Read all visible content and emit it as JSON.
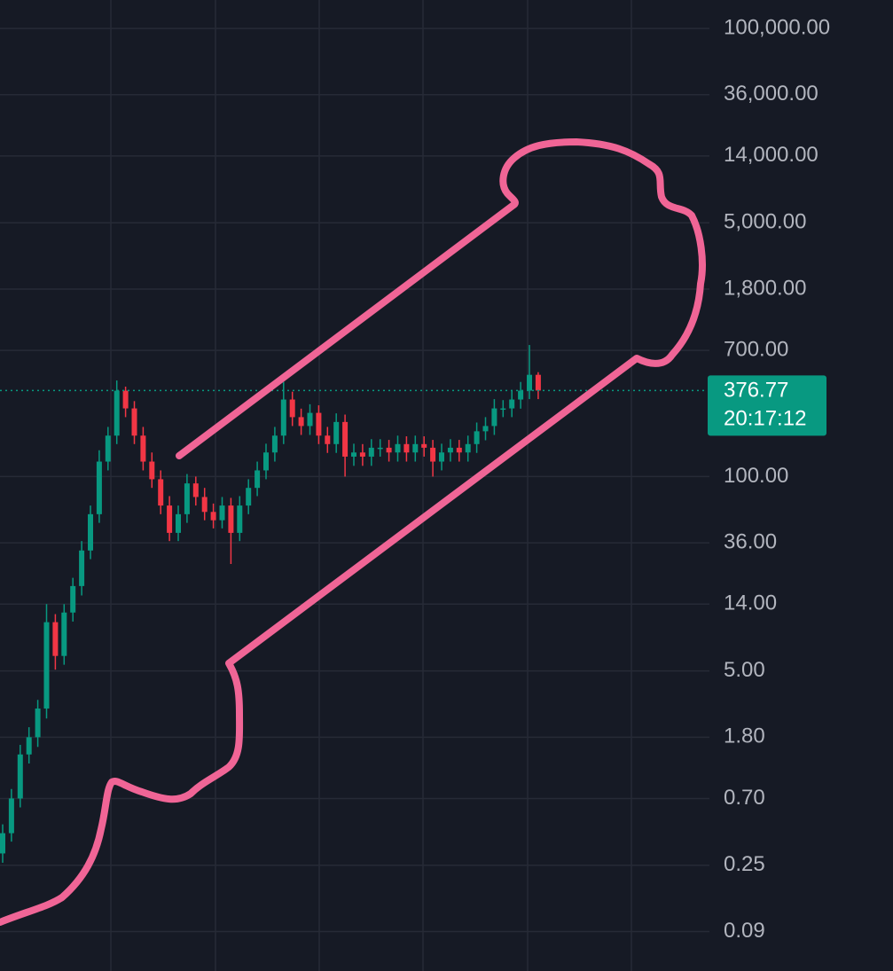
{
  "chart_data": {
    "type": "candlestick",
    "log_scale": true,
    "grid": true,
    "up_color": "#089981",
    "down_color": "#f23645",
    "ylim": [
      0.049,
      155000
    ],
    "yticks": [
      {
        "value": 100000,
        "label": "100,000.00"
      },
      {
        "value": 36000,
        "label": "36,000.00"
      },
      {
        "value": 14000,
        "label": "14,000.00"
      },
      {
        "value": 5000,
        "label": "5,000.00"
      },
      {
        "value": 1800,
        "label": "1,800.00"
      },
      {
        "value": 700,
        "label": "700.00"
      },
      {
        "value": 100,
        "label": "100.00"
      },
      {
        "value": 36,
        "label": "36.00"
      },
      {
        "value": 14,
        "label": "14.00"
      },
      {
        "value": 5,
        "label": "5.00"
      },
      {
        "value": 1.8,
        "label": "1.80"
      },
      {
        "value": 0.7,
        "label": "0.70"
      },
      {
        "value": 0.25,
        "label": "0.25"
      },
      {
        "value": 0.09,
        "label": "0.09"
      }
    ],
    "last_price": 376.77,
    "countdown": "20:17:12",
    "open": [
      0.3,
      0.41,
      0.7,
      1.38,
      1.8,
      2.8,
      10.6,
      6.3,
      12.3,
      18.5,
      32,
      56,
      126,
      188,
      376,
      286,
      188,
      126,
      96,
      64,
      42,
      56,
      90,
      73,
      58,
      51,
      64,
      42,
      64,
      84,
      110,
      145,
      188,
      328,
      250,
      218,
      267,
      188,
      165,
      232,
      136,
      145,
      136,
      156,
      156,
      145,
      165,
      145,
      165,
      156,
      126,
      145,
      156,
      145,
      165,
      201,
      218,
      286,
      286,
      328,
      376,
      480
    ],
    "high": [
      0.47,
      0.81,
      1.6,
      2.1,
      3.2,
      14,
      12,
      14,
      21,
      37,
      64,
      150,
      215,
      440,
      400,
      320,
      215,
      145,
      110,
      74,
      64,
      104,
      100,
      84,
      66,
      73,
      72,
      74,
      96,
      126,
      166,
      215,
      430,
      370,
      285,
      305,
      300,
      215,
      265,
      260,
      166,
      165,
      178,
      178,
      176,
      188,
      186,
      188,
      186,
      176,
      166,
      178,
      176,
      188,
      230,
      250,
      330,
      325,
      375,
      430,
      760,
      500
    ],
    "low": [
      0.26,
      0.36,
      0.61,
      1.2,
      1.55,
      2.4,
      5.1,
      5.5,
      10.7,
      16,
      28,
      49,
      110,
      165,
      250,
      165,
      110,
      84,
      56,
      37,
      37,
      49,
      64,
      51,
      45,
      45,
      26,
      37,
      56,
      74,
      96,
      126,
      165,
      218,
      190,
      190,
      165,
      144,
      144,
      100,
      118,
      118,
      118,
      136,
      126,
      126,
      126,
      126,
      136,
      100,
      110,
      126,
      126,
      126,
      144,
      175,
      190,
      250,
      250,
      285,
      330,
      330
    ],
    "close": [
      0.41,
      0.7,
      1.38,
      1.8,
      2.8,
      10.6,
      6.3,
      12.3,
      18.5,
      32,
      56,
      126,
      188,
      376,
      286,
      188,
      126,
      96,
      64,
      42,
      56,
      90,
      73,
      58,
      51,
      64,
      42,
      64,
      84,
      110,
      145,
      188,
      328,
      250,
      218,
      267,
      188,
      165,
      232,
      136,
      145,
      136,
      156,
      156,
      145,
      165,
      145,
      165,
      156,
      126,
      145,
      156,
      145,
      165,
      201,
      218,
      286,
      286,
      328,
      376,
      480,
      376.77
    ]
  }
}
